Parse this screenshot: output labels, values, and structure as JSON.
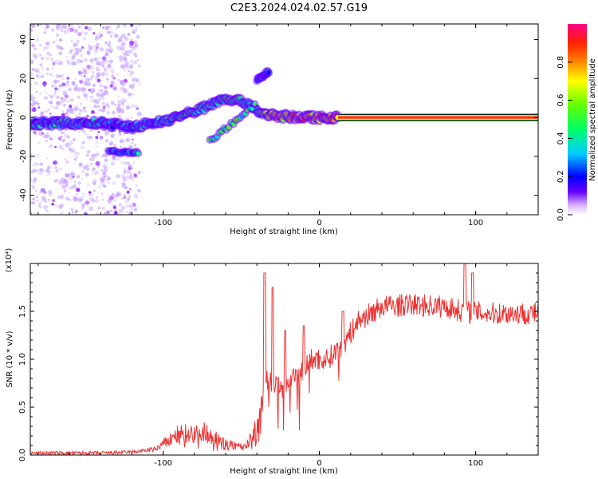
{
  "title": "C2E3.2024.024.02.57.G19",
  "chart_data": [
    {
      "type": "heatmap",
      "name": "spectrogram",
      "xlabel": "Height of straight line (km)",
      "ylabel": "Frequency (Hz)",
      "xlim": [
        -185,
        140
      ],
      "ylim": [
        -50,
        48
      ],
      "xticks": [
        -100,
        0,
        100
      ],
      "yticks": [
        -40,
        -20,
        0,
        20,
        40
      ],
      "colorbar": {
        "label": "Normalized spectral amplitude",
        "range": [
          0,
          1
        ],
        "ticks": [
          "0.0",
          "0.2",
          "0.4",
          "0.6",
          "0.8"
        ],
        "tick_values": [
          0.0,
          0.2,
          0.4,
          0.6,
          0.8
        ],
        "colors": [
          "#ffffff",
          "#6600ff",
          "#0000ff",
          "#00ccff",
          "#00ff66",
          "#66ff00",
          "#ffff00",
          "#ff8800",
          "#ff2200",
          "#ff0088"
        ]
      },
      "ridge": [
        {
          "x": -185,
          "y": -3,
          "amp": 0.3
        },
        {
          "x": -160,
          "y": -3,
          "amp": 0.35
        },
        {
          "x": -140,
          "y": -3,
          "amp": 0.3
        },
        {
          "x": -120,
          "y": -5,
          "amp": 0.3
        },
        {
          "x": -100,
          "y": -2,
          "amp": 0.35
        },
        {
          "x": -80,
          "y": 3,
          "amp": 0.4
        },
        {
          "x": -60,
          "y": 10,
          "amp": 0.45
        },
        {
          "x": -45,
          "y": 7,
          "amp": 0.4
        },
        {
          "x": -40,
          "y": 3,
          "amp": 0.45
        },
        {
          "x": -30,
          "y": 1,
          "amp": 0.7
        },
        {
          "x": -15,
          "y": 0,
          "amp": 0.75
        },
        {
          "x": 0,
          "y": 0,
          "amp": 0.8
        },
        {
          "x": 12,
          "y": 0,
          "amp": 0.85
        },
        {
          "x": 140,
          "y": 0,
          "amp": 0.85
        }
      ],
      "branches": [
        {
          "x": [
            -70,
            -40
          ],
          "y": [
            -12,
            7
          ],
          "amp": 0.45
        },
        {
          "x": [
            -40,
            -32
          ],
          "y": [
            19,
            24
          ],
          "amp": 0.25
        },
        {
          "x": [
            -135,
            -115
          ],
          "y": [
            -18,
            -18
          ],
          "amp": 0.3
        }
      ]
    },
    {
      "type": "line",
      "name": "snr",
      "xlabel": "Height of straight line (km)",
      "ylabel": "SNR (10 * v/v)",
      "y_multiplier": "(x10⁴)",
      "xlim": [
        -185,
        140
      ],
      "ylim": [
        0.0,
        2.0
      ],
      "xticks": [
        -100,
        0,
        100
      ],
      "yticks": [
        "0.0",
        "0.5",
        "1.0",
        "1.5"
      ],
      "ytick_values": [
        0.0,
        0.5,
        1.0,
        1.5
      ],
      "color": "#ee3333",
      "envelope": [
        {
          "x": -185,
          "y": 0.02
        },
        {
          "x": -140,
          "y": 0.02
        },
        {
          "x": -120,
          "y": 0.03
        },
        {
          "x": -105,
          "y": 0.06
        },
        {
          "x": -90,
          "y": 0.22
        },
        {
          "x": -75,
          "y": 0.25
        },
        {
          "x": -60,
          "y": 0.12
        },
        {
          "x": -48,
          "y": 0.08
        },
        {
          "x": -40,
          "y": 0.3
        },
        {
          "x": -33,
          "y": 0.8
        },
        {
          "x": -25,
          "y": 0.7
        },
        {
          "x": -15,
          "y": 0.8
        },
        {
          "x": -5,
          "y": 1.0
        },
        {
          "x": 5,
          "y": 1.0
        },
        {
          "x": 15,
          "y": 1.15
        },
        {
          "x": 25,
          "y": 1.4
        },
        {
          "x": 40,
          "y": 1.55
        },
        {
          "x": 60,
          "y": 1.57
        },
        {
          "x": 80,
          "y": 1.55
        },
        {
          "x": 92,
          "y": 1.5
        },
        {
          "x": 110,
          "y": 1.48
        },
        {
          "x": 140,
          "y": 1.48
        }
      ],
      "spikes": [
        {
          "x": -35,
          "y": 1.9
        },
        {
          "x": -30,
          "y": 1.75
        },
        {
          "x": -22,
          "y": 1.3
        },
        {
          "x": -10,
          "y": 1.35
        },
        {
          "x": 15,
          "y": 1.5
        },
        {
          "x": 93,
          "y": 2.0
        },
        {
          "x": 98,
          "y": 1.9
        }
      ]
    }
  ]
}
